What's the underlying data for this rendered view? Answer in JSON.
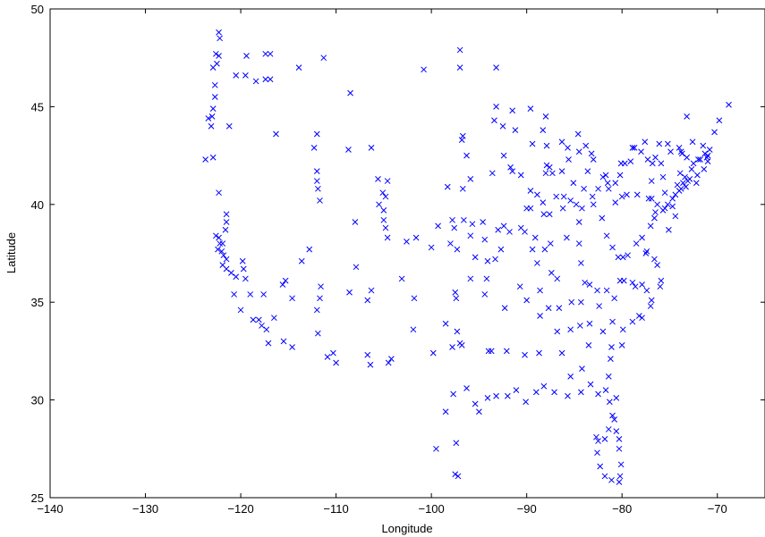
{
  "chart_data": {
    "type": "scatter",
    "title": "",
    "xlabel": "Longitude",
    "ylabel": "Latitude",
    "xlim": [
      -140,
      -65
    ],
    "ylim": [
      25,
      50
    ],
    "xticks": [
      -140,
      -130,
      -120,
      -110,
      -100,
      -90,
      -80,
      -70
    ],
    "yticks": [
      25,
      30,
      35,
      40,
      45,
      50
    ],
    "grid": false,
    "marker": "x",
    "marker_color": "#0000ff",
    "points": [
      [
        -122.3,
        48.8
      ],
      [
        -122.2,
        48.5
      ],
      [
        -122.6,
        47.7
      ],
      [
        -122.3,
        47.6
      ],
      [
        -122.5,
        47.2
      ],
      [
        -122.9,
        47.0
      ],
      [
        -122.7,
        46.1
      ],
      [
        -122.7,
        45.5
      ],
      [
        -122.9,
        44.9
      ],
      [
        -123.0,
        44.5
      ],
      [
        -123.1,
        44.0
      ],
      [
        -123.4,
        44.4
      ],
      [
        -123.7,
        42.3
      ],
      [
        -122.9,
        42.4
      ],
      [
        -121.2,
        44.0
      ],
      [
        -117.4,
        47.7
      ],
      [
        -116.9,
        47.7
      ],
      [
        -117.4,
        46.4
      ],
      [
        -116.9,
        46.4
      ],
      [
        -119.5,
        46.6
      ],
      [
        -120.5,
        46.6
      ],
      [
        -119.4,
        47.6
      ],
      [
        -118.4,
        46.3
      ],
      [
        -116.3,
        43.6
      ],
      [
        -113.9,
        47.0
      ],
      [
        -111.3,
        47.5
      ],
      [
        -108.5,
        45.7
      ],
      [
        -100.8,
        46.9
      ],
      [
        -97.0,
        47.9
      ],
      [
        -97.0,
        47.0
      ],
      [
        -93.2,
        47.0
      ],
      [
        -122.3,
        40.6
      ],
      [
        -121.5,
        39.5
      ],
      [
        -121.5,
        39.1
      ],
      [
        -121.6,
        38.7
      ],
      [
        -122.3,
        38.3
      ],
      [
        -122.6,
        38.4
      ],
      [
        -122.2,
        38.0
      ],
      [
        -121.9,
        38.0
      ],
      [
        -122.0,
        37.6
      ],
      [
        -122.4,
        37.7
      ],
      [
        -121.8,
        37.4
      ],
      [
        -121.5,
        37.2
      ],
      [
        -121.9,
        36.9
      ],
      [
        -121.5,
        36.7
      ],
      [
        -121.0,
        36.5
      ],
      [
        -120.5,
        36.3
      ],
      [
        -119.7,
        36.7
      ],
      [
        -119.8,
        37.1
      ],
      [
        -119.5,
        36.2
      ],
      [
        -120.7,
        35.4
      ],
      [
        -119.0,
        35.4
      ],
      [
        -120.0,
        34.6
      ],
      [
        -118.7,
        34.1
      ],
      [
        -118.1,
        34.1
      ],
      [
        -117.8,
        33.8
      ],
      [
        -117.3,
        33.6
      ],
      [
        -117.1,
        32.9
      ],
      [
        -116.5,
        34.2
      ],
      [
        -117.6,
        35.4
      ],
      [
        -115.6,
        35.9
      ],
      [
        -115.3,
        36.1
      ],
      [
        -114.6,
        35.2
      ],
      [
        -115.5,
        33.0
      ],
      [
        -114.6,
        32.7
      ],
      [
        -111.9,
        33.4
      ],
      [
        -112.0,
        34.6
      ],
      [
        -111.7,
        35.2
      ],
      [
        -110.9,
        32.2
      ],
      [
        -110.0,
        31.9
      ],
      [
        -108.6,
        35.5
      ],
      [
        -106.7,
        35.1
      ],
      [
        -106.3,
        35.6
      ],
      [
        -106.7,
        32.3
      ],
      [
        -106.4,
        31.8
      ],
      [
        -104.5,
        31.9
      ],
      [
        -104.2,
        32.1
      ],
      [
        -103.1,
        36.2
      ],
      [
        -101.8,
        35.2
      ],
      [
        -101.9,
        33.6
      ],
      [
        -99.8,
        32.4
      ],
      [
        -98.5,
        29.4
      ],
      [
        -99.5,
        27.5
      ],
      [
        -97.5,
        26.2
      ],
      [
        -97.2,
        26.1
      ],
      [
        -97.4,
        27.8
      ],
      [
        -97.7,
        30.3
      ],
      [
        -97.8,
        32.7
      ],
      [
        -97.0,
        32.9
      ],
      [
        -97.3,
        33.5
      ],
      [
        -96.8,
        32.8
      ],
      [
        -96.3,
        30.6
      ],
      [
        -95.4,
        29.8
      ],
      [
        -95.0,
        29.4
      ],
      [
        -94.1,
        30.1
      ],
      [
        -94.0,
        32.5
      ],
      [
        -93.7,
        32.5
      ],
      [
        -92.1,
        32.5
      ],
      [
        -93.2,
        30.2
      ],
      [
        -91.1,
        30.5
      ],
      [
        -92.0,
        30.2
      ],
      [
        -90.1,
        29.9
      ],
      [
        -89.0,
        30.4
      ],
      [
        -88.2,
        30.7
      ],
      [
        -87.1,
        30.4
      ],
      [
        -85.7,
        30.2
      ],
      [
        -84.3,
        30.4
      ],
      [
        -83.3,
        30.8
      ],
      [
        -82.5,
        30.3
      ],
      [
        -81.7,
        30.5
      ],
      [
        -81.3,
        29.9
      ],
      [
        -81.0,
        29.2
      ],
      [
        -81.4,
        28.5
      ],
      [
        -81.8,
        28.0
      ],
      [
        -82.5,
        27.9
      ],
      [
        -82.7,
        28.1
      ],
      [
        -82.6,
        27.3
      ],
      [
        -82.3,
        26.6
      ],
      [
        -81.8,
        26.1
      ],
      [
        -81.1,
        25.9
      ],
      [
        -80.3,
        25.8
      ],
      [
        -80.2,
        26.1
      ],
      [
        -80.1,
        26.7
      ],
      [
        -80.3,
        27.5
      ],
      [
        -80.3,
        28.0
      ],
      [
        -80.6,
        28.4
      ],
      [
        -80.8,
        29.0
      ],
      [
        -80.6,
        30.1
      ],
      [
        -81.4,
        31.2
      ],
      [
        -81.2,
        32.1
      ],
      [
        -81.1,
        32.7
      ],
      [
        -80.0,
        32.8
      ],
      [
        -79.9,
        33.6
      ],
      [
        -78.9,
        34.0
      ],
      [
        -78.2,
        34.3
      ],
      [
        -77.9,
        34.2
      ],
      [
        -77.0,
        34.8
      ],
      [
        -76.9,
        35.1
      ],
      [
        -76.0,
        35.8
      ],
      [
        -75.9,
        36.1
      ],
      [
        -76.3,
        36.9
      ],
      [
        -76.6,
        37.2
      ],
      [
        -77.5,
        37.5
      ],
      [
        -77.9,
        38.3
      ],
      [
        -77.0,
        38.9
      ],
      [
        -76.6,
        39.3
      ],
      [
        -75.5,
        39.8
      ],
      [
        -75.2,
        40.0
      ],
      [
        -74.7,
        40.3
      ],
      [
        -74.0,
        40.7
      ],
      [
        -73.8,
        40.8
      ],
      [
        -73.3,
        40.9
      ],
      [
        -72.9,
        41.3
      ],
      [
        -72.7,
        41.8
      ],
      [
        -72.1,
        41.5
      ],
      [
        -71.4,
        41.8
      ],
      [
        -71.0,
        42.2
      ],
      [
        -71.1,
        42.4
      ],
      [
        -70.8,
        42.8
      ],
      [
        -70.3,
        43.7
      ],
      [
        -69.8,
        44.3
      ],
      [
        -68.8,
        45.1
      ],
      [
        -73.2,
        44.5
      ],
      [
        -72.6,
        43.2
      ],
      [
        -71.5,
        43.0
      ],
      [
        -73.8,
        42.7
      ],
      [
        -74.0,
        42.9
      ],
      [
        -75.2,
        43.1
      ],
      [
        -76.1,
        43.1
      ],
      [
        -77.6,
        43.2
      ],
      [
        -78.9,
        42.9
      ],
      [
        -79.7,
        42.1
      ],
      [
        -80.1,
        42.1
      ],
      [
        -79.5,
        40.5
      ],
      [
        -80.0,
        40.4
      ],
      [
        -80.7,
        40.1
      ],
      [
        -81.7,
        41.5
      ],
      [
        -81.5,
        41.1
      ],
      [
        -82.0,
        41.4
      ],
      [
        -83.6,
        41.7
      ],
      [
        -83.0,
        42.3
      ],
      [
        -83.2,
        42.6
      ],
      [
        -84.5,
        42.7
      ],
      [
        -85.6,
        42.3
      ],
      [
        -85.7,
        42.9
      ],
      [
        -86.3,
        43.2
      ],
      [
        -84.6,
        43.6
      ],
      [
        -83.8,
        43.0
      ],
      [
        -87.9,
        43.0
      ],
      [
        -88.3,
        43.8
      ],
      [
        -88.0,
        44.5
      ],
      [
        -89.4,
        43.1
      ],
      [
        -91.2,
        43.8
      ],
      [
        -89.6,
        44.9
      ],
      [
        -91.5,
        44.8
      ],
      [
        -92.5,
        44.0
      ],
      [
        -93.2,
        45.0
      ],
      [
        -93.4,
        44.3
      ],
      [
        -96.7,
        43.5
      ],
      [
        -96.8,
        43.3
      ],
      [
        -96.3,
        42.5
      ],
      [
        -95.9,
        41.3
      ],
      [
        -96.7,
        40.8
      ],
      [
        -98.3,
        40.9
      ],
      [
        -97.6,
        38.8
      ],
      [
        -97.3,
        37.7
      ],
      [
        -95.7,
        39.0
      ],
      [
        -94.6,
        39.1
      ],
      [
        -94.4,
        38.2
      ],
      [
        -93.3,
        37.2
      ],
      [
        -93.0,
        38.7
      ],
      [
        -92.4,
        38.9
      ],
      [
        -90.2,
        38.6
      ],
      [
        -90.0,
        39.8
      ],
      [
        -89.6,
        39.8
      ],
      [
        -88.9,
        40.5
      ],
      [
        -89.6,
        40.7
      ],
      [
        -90.6,
        41.5
      ],
      [
        -91.5,
        41.7
      ],
      [
        -93.6,
        41.6
      ],
      [
        -92.4,
        42.5
      ],
      [
        -91.7,
        41.9
      ],
      [
        -87.6,
        41.9
      ],
      [
        -87.9,
        42.0
      ],
      [
        -88.0,
        41.6
      ],
      [
        -87.3,
        41.6
      ],
      [
        -86.3,
        41.7
      ],
      [
        -85.1,
        41.1
      ],
      [
        -86.2,
        39.8
      ],
      [
        -87.5,
        38.0
      ],
      [
        -88.3,
        40.1
      ],
      [
        -85.8,
        38.3
      ],
      [
        -84.5,
        38.0
      ],
      [
        -84.5,
        39.1
      ],
      [
        -84.2,
        39.8
      ],
      [
        -83.0,
        40.0
      ],
      [
        -82.1,
        39.3
      ],
      [
        -81.6,
        38.4
      ],
      [
        -81.0,
        37.8
      ],
      [
        -80.4,
        37.3
      ],
      [
        -79.9,
        37.3
      ],
      [
        -79.4,
        37.4
      ],
      [
        -78.5,
        38.0
      ],
      [
        -77.4,
        37.6
      ],
      [
        -80.2,
        36.1
      ],
      [
        -79.8,
        36.1
      ],
      [
        -78.6,
        35.8
      ],
      [
        -78.9,
        36.0
      ],
      [
        -80.8,
        35.2
      ],
      [
        -81.6,
        35.6
      ],
      [
        -82.6,
        35.6
      ],
      [
        -83.9,
        36.0
      ],
      [
        -84.3,
        35.0
      ],
      [
        -85.3,
        35.0
      ],
      [
        -86.8,
        36.2
      ],
      [
        -87.4,
        36.5
      ],
      [
        -88.6,
        35.6
      ],
      [
        -90.0,
        35.1
      ],
      [
        -90.7,
        35.8
      ],
      [
        -92.3,
        34.7
      ],
      [
        -94.4,
        35.4
      ],
      [
        -94.2,
        36.2
      ],
      [
        -95.9,
        36.2
      ],
      [
        -97.5,
        35.5
      ],
      [
        -97.4,
        35.2
      ],
      [
        -98.5,
        33.9
      ],
      [
        -90.2,
        32.3
      ],
      [
        -88.7,
        32.4
      ],
      [
        -88.6,
        34.3
      ],
      [
        -86.8,
        33.5
      ],
      [
        -86.6,
        34.7
      ],
      [
        -85.4,
        33.6
      ],
      [
        -84.4,
        33.8
      ],
      [
        -83.4,
        33.9
      ],
      [
        -82.0,
        33.5
      ],
      [
        -81.0,
        34.0
      ],
      [
        -82.4,
        34.8
      ],
      [
        -86.3,
        32.4
      ],
      [
        -85.4,
        31.2
      ],
      [
        -84.2,
        31.6
      ],
      [
        -83.5,
        32.8
      ],
      [
        -87.7,
        34.7
      ],
      [
        -84.3,
        37.0
      ],
      [
        -83.4,
        35.9
      ],
      [
        -77.9,
        35.9
      ],
      [
        -77.4,
        35.6
      ],
      [
        -76.5,
        39.6
      ],
      [
        -75.7,
        39.7
      ],
      [
        -77.2,
        40.3
      ],
      [
        -76.9,
        40.3
      ],
      [
        -76.3,
        40.0
      ],
      [
        -75.5,
        40.6
      ],
      [
        -75.7,
        41.4
      ],
      [
        -76.9,
        41.2
      ],
      [
        -78.4,
        40.5
      ],
      [
        -76.8,
        42.1
      ],
      [
        -75.9,
        42.1
      ],
      [
        -74.2,
        41.0
      ],
      [
        -74.4,
        40.5
      ],
      [
        -74.7,
        39.9
      ],
      [
        -74.4,
        39.4
      ],
      [
        -75.1,
        38.7
      ],
      [
        -73.9,
        41.6
      ],
      [
        -73.6,
        41.1
      ],
      [
        -73.4,
        41.4
      ],
      [
        -73.1,
        41.2
      ],
      [
        -72.5,
        42.1
      ],
      [
        -72.0,
        42.3
      ],
      [
        -71.8,
        42.3
      ],
      [
        -71.3,
        42.6
      ],
      [
        -71.0,
        42.5
      ],
      [
        -72.2,
        41.1
      ],
      [
        -73.2,
        42.4
      ],
      [
        -73.7,
        42.6
      ],
      [
        -74.9,
        42.7
      ],
      [
        -76.5,
        42.4
      ],
      [
        -78.0,
        42.7
      ],
      [
        -77.3,
        42.3
      ],
      [
        -78.7,
        42.9
      ],
      [
        -79.1,
        42.2
      ],
      [
        -80.2,
        41.5
      ],
      [
        -80.7,
        41.1
      ],
      [
        -81.4,
        40.8
      ],
      [
        -82.5,
        40.8
      ],
      [
        -83.1,
        40.4
      ],
      [
        -84.0,
        40.8
      ],
      [
        -84.8,
        40.0
      ],
      [
        -85.4,
        40.2
      ],
      [
        -86.1,
        40.4
      ],
      [
        -86.9,
        40.4
      ],
      [
        -87.6,
        39.5
      ],
      [
        -88.2,
        39.5
      ],
      [
        -89.4,
        37.7
      ],
      [
        -88.9,
        37.0
      ],
      [
        -88.1,
        37.7
      ],
      [
        -89.1,
        38.3
      ],
      [
        -90.6,
        38.8
      ],
      [
        -91.8,
        38.6
      ],
      [
        -92.7,
        37.7
      ],
      [
        -94.1,
        37.1
      ],
      [
        -95.4,
        37.3
      ],
      [
        -95.9,
        38.4
      ],
      [
        -96.6,
        39.2
      ],
      [
        -97.8,
        39.2
      ],
      [
        -99.3,
        38.9
      ],
      [
        -98.0,
        38.0
      ],
      [
        -100.0,
        37.8
      ],
      [
        -101.6,
        38.3
      ],
      [
        -102.6,
        38.1
      ],
      [
        -104.6,
        38.3
      ],
      [
        -104.8,
        38.8
      ],
      [
        -105.0,
        39.7
      ],
      [
        -104.8,
        40.4
      ],
      [
        -105.1,
        40.6
      ],
      [
        -105.5,
        40.0
      ],
      [
        -105.0,
        39.2
      ],
      [
        -104.6,
        41.2
      ],
      [
        -105.6,
        41.3
      ],
      [
        -106.3,
        42.9
      ],
      [
        -108.7,
        42.8
      ],
      [
        -108.0,
        39.1
      ],
      [
        -107.9,
        36.8
      ],
      [
        -111.9,
        40.8
      ],
      [
        -111.7,
        40.2
      ],
      [
        -112.0,
        41.2
      ],
      [
        -112.0,
        41.7
      ],
      [
        -112.3,
        42.9
      ],
      [
        -112.0,
        43.6
      ],
      [
        -111.6,
        35.8
      ],
      [
        -113.6,
        37.1
      ],
      [
        -112.8,
        37.7
      ],
      [
        -110.3,
        32.4
      ]
    ]
  }
}
